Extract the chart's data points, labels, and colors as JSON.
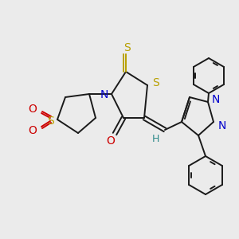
{
  "bg_color": "#ebebeb",
  "fig_size": [
    3.0,
    3.0
  ],
  "dpi": 100,
  "lw": 1.4,
  "colors": {
    "bond": "#1a1a1a",
    "S": "#b8a000",
    "N": "#0000cc",
    "O": "#cc0000",
    "H": "#2e8b8b"
  }
}
